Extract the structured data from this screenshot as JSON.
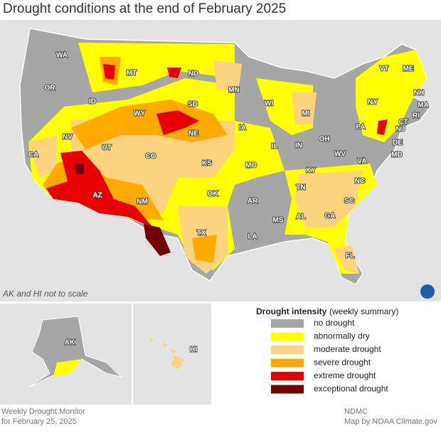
{
  "title": "Drought conditions at the end of February 2025",
  "states": [
    "WA",
    "OR",
    "CA",
    "NV",
    "ID",
    "MT",
    "WY",
    "UT",
    "AZ",
    "CO",
    "NM",
    "ND",
    "SD",
    "NE",
    "KS",
    "OK",
    "TX",
    "MN",
    "IA",
    "MO",
    "AR",
    "LA",
    "WI",
    "IL",
    "MS",
    "MI",
    "IN",
    "KY",
    "TN",
    "AL",
    "OH",
    "WV",
    "VA",
    "NC",
    "SC",
    "GA",
    "FL",
    "PA",
    "NY",
    "VT",
    "ME",
    "NH",
    "MA",
    "RI",
    "CT",
    "NJ",
    "DE",
    "MD"
  ],
  "note": "AK and HI not to scale",
  "alaska_label": "AK",
  "hawaii_label": "HI",
  "legend": {
    "title": "Drought intensity",
    "subtitle": "(weekly summary)",
    "items": [
      {
        "label": "no drought",
        "color": "#a6a6a6"
      },
      {
        "label": "abnormally dry",
        "color": "#ffff00"
      },
      {
        "label": "moderate drought",
        "color": "#fcd37f"
      },
      {
        "label": "severe drought",
        "color": "#ffaa00"
      },
      {
        "label": "extreme drought",
        "color": "#e60000"
      },
      {
        "label": "exceptional drought",
        "color": "#730000"
      }
    ]
  },
  "footer_left": [
    "Weekly Drought Monitor",
    "for February 25, 2025"
  ],
  "footer_right": [
    "NDMC",
    "Map by NOAA Climate.gov"
  ]
}
